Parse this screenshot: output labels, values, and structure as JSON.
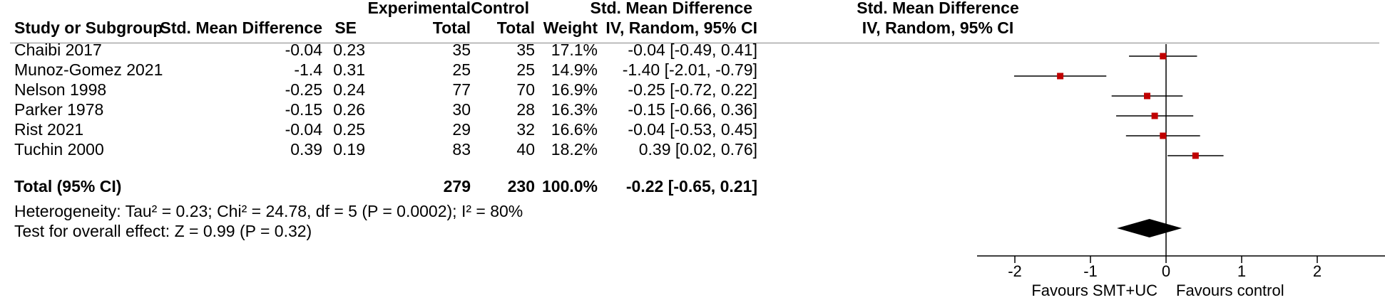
{
  "headers": {
    "study": "Study or Subgroup",
    "smd": "Std. Mean Difference",
    "se": "SE",
    "exp_top": "Experimental",
    "exp_bottom": "Total",
    "ctrl_top": "Control",
    "ctrl_bottom": "Total",
    "weight": "Weight",
    "ci_top": "Std. Mean Difference",
    "ci_bottom": "IV, Random, 95% CI",
    "plot_top": "Std. Mean Difference",
    "plot_bottom": "IV, Random, 95% CI"
  },
  "studies": [
    {
      "name": "Chaibi 2017",
      "smd": "-0.04",
      "se": "0.23",
      "exp_total": "35",
      "ctrl_total": "35",
      "weight": "17.1%",
      "ci": "-0.04 [-0.49, 0.41]"
    },
    {
      "name": "Munoz-Gomez 2021",
      "smd": "-1.4",
      "se": "0.31",
      "exp_total": "25",
      "ctrl_total": "25",
      "weight": "14.9%",
      "ci": "-1.40 [-2.01, -0.79]"
    },
    {
      "name": "Nelson 1998",
      "smd": "-0.25",
      "se": "0.24",
      "exp_total": "77",
      "ctrl_total": "70",
      "weight": "16.9%",
      "ci": "-0.25 [-0.72, 0.22]"
    },
    {
      "name": "Parker 1978",
      "smd": "-0.15",
      "se": "0.26",
      "exp_total": "30",
      "ctrl_total": "28",
      "weight": "16.3%",
      "ci": "-0.15 [-0.66, 0.36]"
    },
    {
      "name": "Rist 2021",
      "smd": "-0.04",
      "se": "0.25",
      "exp_total": "29",
      "ctrl_total": "32",
      "weight": "16.6%",
      "ci": "-0.04 [-0.53, 0.45]"
    },
    {
      "name": "Tuchin 2000",
      "smd": "0.39",
      "se": "0.19",
      "exp_total": "83",
      "ctrl_total": "40",
      "weight": "18.2%",
      "ci": "0.39 [0.02, 0.76]"
    }
  ],
  "total": {
    "label": "Total (95% CI)",
    "exp_total": "279",
    "ctrl_total": "230",
    "weight": "100.0%",
    "ci": "-0.22 [-0.65, 0.21]"
  },
  "heterogeneity": "Heterogeneity: Tau² = 0.23; Chi² = 24.78, df = 5 (P = 0.0002); I² = 80%",
  "overall_effect": "Test for overall effect: Z = 0.99 (P = 0.32)",
  "colors": {
    "marker": "#c00000",
    "line": "#000000",
    "diamond": "#000000"
  },
  "chart_data": {
    "type": "forest",
    "xlim": [
      -2.5,
      2.9
    ],
    "ticks": [
      -2,
      -1,
      0,
      1,
      2
    ],
    "tick_labels": [
      "-2",
      "-1",
      "0",
      "1",
      "2"
    ],
    "xlabel_left": "Favours SMT+UC",
    "xlabel_right": "Favours control",
    "series": [
      {
        "study": "Chaibi 2017",
        "estimate": -0.04,
        "lower": -0.49,
        "upper": 0.41,
        "weight": 17.1
      },
      {
        "study": "Munoz-Gomez 2021",
        "estimate": -1.4,
        "lower": -2.01,
        "upper": -0.79,
        "weight": 14.9
      },
      {
        "study": "Nelson 1998",
        "estimate": -0.25,
        "lower": -0.72,
        "upper": 0.22,
        "weight": 16.9
      },
      {
        "study": "Parker 1978",
        "estimate": -0.15,
        "lower": -0.66,
        "upper": 0.36,
        "weight": 16.3
      },
      {
        "study": "Rist 2021",
        "estimate": -0.04,
        "lower": -0.53,
        "upper": 0.45,
        "weight": 16.6
      },
      {
        "study": "Tuchin 2000",
        "estimate": 0.39,
        "lower": 0.02,
        "upper": 0.76,
        "weight": 18.2
      }
    ],
    "pooled": {
      "estimate": -0.22,
      "lower": -0.65,
      "upper": 0.21
    }
  }
}
